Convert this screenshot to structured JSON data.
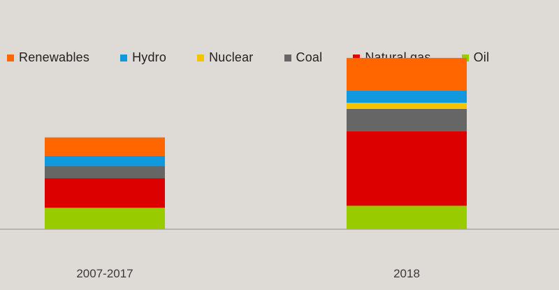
{
  "chart_data": {
    "type": "bar",
    "stacked": true,
    "categories": [
      "2007-2017",
      "2018"
    ],
    "series": [
      {
        "name": "Oil",
        "color": "#99cc00",
        "values": [
          1.05,
          1.15
        ]
      },
      {
        "name": "Natural gas",
        "color": "#dd0000",
        "values": [
          1.45,
          3.65
        ]
      },
      {
        "name": "Coal",
        "color": "#666666",
        "values": [
          0.6,
          1.1
        ]
      },
      {
        "name": "Nuclear",
        "color": "#f5c400",
        "values": [
          0.0,
          0.3
        ]
      },
      {
        "name": "Hydro",
        "color": "#1199dd",
        "values": [
          0.5,
          0.6
        ]
      },
      {
        "name": "Renewables",
        "color": "#ff6600",
        "values": [
          0.9,
          1.6
        ]
      }
    ],
    "legend_order": [
      "Renewables",
      "Hydro",
      "Nuclear",
      "Coal",
      "Natural gas",
      "Oil"
    ],
    "legend_position": "top-left",
    "ylim": [
      0,
      11
    ],
    "grid": false
  }
}
